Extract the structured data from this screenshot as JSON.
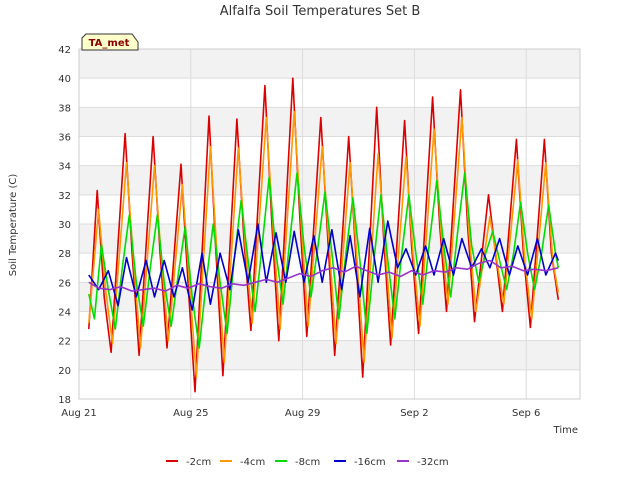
{
  "chart_data": {
    "type": "line",
    "title": "Alfalfa Soil Temperatures Set B",
    "xlabel": "Time",
    "ylabel": "Soil Temperature (C)",
    "ylim": [
      18,
      42
    ],
    "yticks": [
      18,
      20,
      22,
      24,
      26,
      28,
      30,
      32,
      34,
      36,
      38,
      40,
      42
    ],
    "xlim": [
      0,
      17.5
    ],
    "xticks": [
      {
        "value": 0,
        "label": "Aug 21"
      },
      {
        "value": 4,
        "label": "Aug 25"
      },
      {
        "value": 8,
        "label": "Aug 29"
      },
      {
        "value": 12,
        "label": "Sep 2"
      },
      {
        "value": 16,
        "label": "Sep 6"
      }
    ],
    "grid": true,
    "legend_position": "bottom",
    "badge": "TA_met",
    "series": [
      {
        "name": "-2cm",
        "color": "#dd0000",
        "x": [
          0.35,
          0.65,
          0.9,
          1.15,
          1.65,
          1.9,
          2.15,
          2.65,
          2.9,
          3.15,
          3.65,
          3.9,
          4.15,
          4.65,
          4.9,
          5.15,
          5.65,
          5.9,
          6.15,
          6.65,
          6.9,
          7.15,
          7.65,
          7.9,
          8.15,
          8.65,
          8.9,
          9.15,
          9.65,
          9.9,
          10.15,
          10.65,
          10.9,
          11.15,
          11.65,
          11.9,
          12.15,
          12.65,
          12.9,
          13.15,
          13.65,
          13.9,
          14.15,
          14.65,
          14.9,
          15.15,
          15.65,
          15.9,
          16.15,
          16.65,
          16.9,
          17.15
        ],
        "y": [
          22.8,
          32.3,
          25.0,
          21.2,
          36.2,
          28.0,
          21.0,
          36.0,
          28.0,
          21.5,
          34.1,
          26.0,
          18.5,
          37.4,
          28.0,
          19.6,
          37.2,
          29.0,
          22.7,
          39.5,
          30.0,
          22.0,
          40.0,
          30.5,
          22.3,
          37.3,
          29.0,
          21.0,
          36.0,
          28.0,
          19.5,
          38.0,
          29.0,
          21.7,
          37.1,
          28.5,
          22.5,
          38.7,
          30.0,
          24.0,
          39.2,
          30.0,
          23.3,
          32.0,
          28.0,
          24.0,
          35.8,
          28.0,
          22.9,
          35.8,
          28.0,
          24.8
        ]
      },
      {
        "name": "-4cm",
        "color": "#ff9900",
        "x": [
          0.35,
          0.7,
          0.95,
          1.2,
          1.7,
          1.95,
          2.2,
          2.7,
          2.95,
          3.2,
          3.7,
          3.95,
          4.2,
          4.7,
          4.95,
          5.2,
          5.7,
          5.95,
          6.2,
          6.7,
          6.95,
          7.2,
          7.7,
          7.95,
          8.2,
          8.7,
          8.95,
          9.2,
          9.7,
          9.95,
          10.2,
          10.7,
          10.95,
          11.2,
          11.7,
          11.95,
          12.2,
          12.7,
          12.95,
          13.2,
          13.7,
          13.95,
          14.2,
          14.7,
          14.95,
          15.2,
          15.7,
          15.95,
          16.2,
          16.7,
          16.95,
          17.15
        ],
        "y": [
          23.2,
          31.0,
          25.5,
          21.8,
          34.2,
          27.5,
          21.5,
          34.0,
          27.5,
          22.0,
          32.7,
          26.0,
          19.5,
          35.3,
          27.5,
          20.5,
          35.2,
          28.5,
          23.2,
          37.3,
          29.5,
          22.8,
          37.7,
          30.0,
          23.0,
          35.3,
          28.5,
          21.8,
          34.2,
          27.5,
          20.5,
          34.8,
          28.5,
          22.2,
          34.6,
          28.0,
          23.0,
          36.5,
          29.5,
          24.5,
          37.3,
          29.5,
          24.0,
          30.5,
          27.5,
          24.5,
          34.4,
          27.5,
          23.5,
          34.2,
          27.5,
          25.3
        ]
      },
      {
        "name": "-8cm",
        "color": "#00dd00",
        "x": [
          0.35,
          0.55,
          0.8,
          1.05,
          1.3,
          1.55,
          1.8,
          2.05,
          2.3,
          2.55,
          2.8,
          3.05,
          3.3,
          3.55,
          3.8,
          4.05,
          4.3,
          4.55,
          4.8,
          5.05,
          5.3,
          5.55,
          5.8,
          6.05,
          6.3,
          6.55,
          6.8,
          7.05,
          7.3,
          7.55,
          7.8,
          8.05,
          8.3,
          8.55,
          8.8,
          9.05,
          9.3,
          9.55,
          9.8,
          10.05,
          10.3,
          10.55,
          10.8,
          11.05,
          11.3,
          11.55,
          11.8,
          12.05,
          12.3,
          12.55,
          12.8,
          13.05,
          13.3,
          13.55,
          13.8,
          14.05,
          14.3,
          14.55,
          14.8,
          15.05,
          15.3,
          15.55,
          15.8,
          16.05,
          16.3,
          16.55,
          16.8,
          17.05,
          17.15
        ],
        "y": [
          25.2,
          23.5,
          28.6,
          25.5,
          22.8,
          27.0,
          30.6,
          26.0,
          23.0,
          27.0,
          30.6,
          26.0,
          23.0,
          26.5,
          29.8,
          25.0,
          21.5,
          26.0,
          30.0,
          26.0,
          22.5,
          27.5,
          31.6,
          27.5,
          24.0,
          28.5,
          33.2,
          28.0,
          24.5,
          29.0,
          33.5,
          28.5,
          25.0,
          28.5,
          32.2,
          28.0,
          23.5,
          28.0,
          31.8,
          27.5,
          22.5,
          27.5,
          32.0,
          27.5,
          23.5,
          28.0,
          32.0,
          28.0,
          24.5,
          29.0,
          33.0,
          28.5,
          25.0,
          29.5,
          33.5,
          28.5,
          26.0,
          28.0,
          29.5,
          27.5,
          25.5,
          28.0,
          31.5,
          28.0,
          25.5,
          28.0,
          31.3,
          28.0,
          27.0
        ]
      },
      {
        "name": "-16cm",
        "color": "#0000cc",
        "x": [
          0.35,
          0.7,
          1.05,
          1.4,
          1.7,
          2.05,
          2.4,
          2.7,
          3.05,
          3.4,
          3.7,
          4.05,
          4.4,
          4.7,
          5.05,
          5.4,
          5.7,
          6.05,
          6.4,
          6.7,
          7.05,
          7.4,
          7.7,
          8.05,
          8.4,
          8.7,
          9.05,
          9.4,
          9.7,
          10.05,
          10.4,
          10.7,
          11.05,
          11.4,
          11.7,
          12.05,
          12.4,
          12.7,
          13.05,
          13.4,
          13.7,
          14.05,
          14.4,
          14.7,
          15.05,
          15.4,
          15.7,
          16.05,
          16.4,
          16.7,
          17.05,
          17.15
        ],
        "y": [
          26.5,
          25.5,
          26.8,
          24.4,
          27.7,
          25.0,
          27.5,
          25.0,
          27.5,
          25.0,
          27.0,
          24.1,
          28.0,
          24.5,
          28.0,
          25.5,
          29.6,
          26.0,
          30.0,
          26.0,
          29.4,
          26.0,
          29.5,
          26.0,
          29.2,
          26.0,
          29.6,
          25.5,
          29.2,
          25.0,
          29.7,
          26.0,
          30.2,
          27.0,
          28.3,
          26.5,
          28.5,
          26.5,
          29.0,
          26.5,
          29.0,
          27.0,
          28.3,
          27.0,
          29.0,
          26.5,
          28.5,
          26.5,
          29.0,
          26.5,
          28.0,
          27.5
        ]
      },
      {
        "name": "-32cm",
        "color": "#9933cc",
        "x": [
          0.35,
          0.7,
          1.1,
          1.5,
          1.9,
          2.3,
          2.7,
          3.1,
          3.5,
          3.9,
          4.3,
          4.7,
          5.1,
          5.5,
          5.9,
          6.3,
          6.7,
          7.1,
          7.5,
          7.9,
          8.3,
          8.7,
          9.1,
          9.5,
          9.9,
          10.3,
          10.7,
          11.1,
          11.5,
          11.9,
          12.3,
          12.7,
          13.1,
          13.5,
          13.9,
          14.3,
          14.7,
          15.1,
          15.5,
          15.9,
          16.3,
          16.7,
          17.15
        ],
        "y": [
          26.0,
          25.6,
          25.5,
          25.7,
          25.4,
          25.5,
          25.6,
          25.4,
          25.8,
          25.6,
          25.9,
          25.7,
          25.6,
          25.9,
          25.8,
          26.0,
          26.2,
          26.0,
          26.3,
          26.6,
          26.4,
          26.8,
          27.0,
          26.7,
          27.1,
          26.8,
          26.5,
          26.7,
          26.4,
          26.8,
          26.5,
          26.8,
          26.7,
          27.0,
          26.9,
          27.3,
          27.5,
          27.0,
          27.1,
          26.8,
          26.9,
          26.8,
          27.0
        ]
      }
    ]
  }
}
